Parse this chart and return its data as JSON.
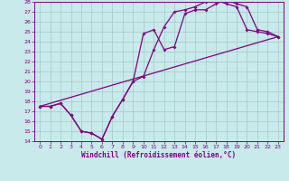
{
  "xlabel": "Windchill (Refroidissement éolien,°C)",
  "xlim": [
    -0.5,
    23.5
  ],
  "ylim": [
    14,
    28
  ],
  "xticks": [
    0,
    1,
    2,
    3,
    4,
    5,
    6,
    7,
    8,
    9,
    10,
    11,
    12,
    13,
    14,
    15,
    16,
    17,
    18,
    19,
    20,
    21,
    22,
    23
  ],
  "yticks": [
    14,
    15,
    16,
    17,
    18,
    19,
    20,
    21,
    22,
    23,
    24,
    25,
    26,
    27,
    28
  ],
  "bg_color": "#c8eaea",
  "grid_color": "#a0c8c8",
  "line_color": "#800080",
  "series1_x": [
    0,
    1,
    2,
    3,
    4,
    5,
    6,
    7,
    8,
    9,
    10,
    11,
    12,
    13,
    14,
    15,
    16,
    17,
    18,
    19,
    20,
    21,
    22,
    23
  ],
  "series1_y": [
    17.5,
    17.5,
    17.8,
    16.6,
    15.0,
    14.8,
    14.2,
    16.5,
    18.2,
    20.0,
    20.5,
    23.2,
    25.5,
    27.0,
    27.2,
    27.5,
    28.0,
    28.2,
    27.8,
    27.5,
    25.2,
    25.0,
    24.8,
    24.5
  ],
  "series2_x": [
    0,
    1,
    2,
    3,
    4,
    5,
    6,
    7,
    8,
    9,
    10,
    11,
    12,
    13,
    14,
    15,
    16,
    17,
    18,
    19,
    20,
    21,
    22,
    23
  ],
  "series2_y": [
    17.5,
    17.5,
    17.8,
    16.6,
    15.0,
    14.8,
    14.2,
    16.5,
    18.2,
    20.0,
    24.8,
    25.2,
    23.2,
    23.5,
    26.8,
    27.2,
    27.2,
    27.8,
    28.2,
    27.8,
    27.5,
    25.2,
    25.0,
    24.5
  ],
  "series3_x": [
    0,
    23
  ],
  "series3_y": [
    17.5,
    24.5
  ]
}
